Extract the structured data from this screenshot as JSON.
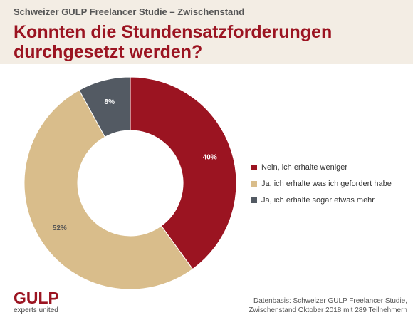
{
  "header": {
    "supertitle": "Schweizer GULP Freelancer Studie – Zwischenstand",
    "title": "Konnten die Stundensatzforderungen durchgesetzt werden?"
  },
  "chart_data": {
    "type": "pie",
    "variant": "donut",
    "title": "Konnten die Stundensatzforderungen durchgesetzt werden?",
    "categories": [
      "Nein, ich erhalte weniger",
      "Ja, ich erhalte was ich gefordert habe",
      "Ja, ich erhalte sogar etwas mehr"
    ],
    "values": [
      40,
      52,
      8
    ],
    "value_labels": [
      "40%",
      "52%",
      "8%"
    ],
    "colors": [
      "#9b1421",
      "#d9bd8b",
      "#535a63"
    ],
    "legend_position": "right"
  },
  "legend": [
    {
      "label": "Nein, ich erhalte weniger",
      "color": "#9b1421"
    },
    {
      "label": "Ja, ich erhalte was ich gefordert habe",
      "color": "#d9bd8b"
    },
    {
      "label": "Ja, ich erhalte sogar etwas mehr",
      "color": "#535a63"
    }
  ],
  "logo": {
    "name": "GULP",
    "tagline": "experts united"
  },
  "source": {
    "line1": "Datenbasis: Schweizer GULP Freelancer Studie,",
    "line2": "Zwischenstand Oktober 2018 mit 289 Teilnehmern"
  }
}
